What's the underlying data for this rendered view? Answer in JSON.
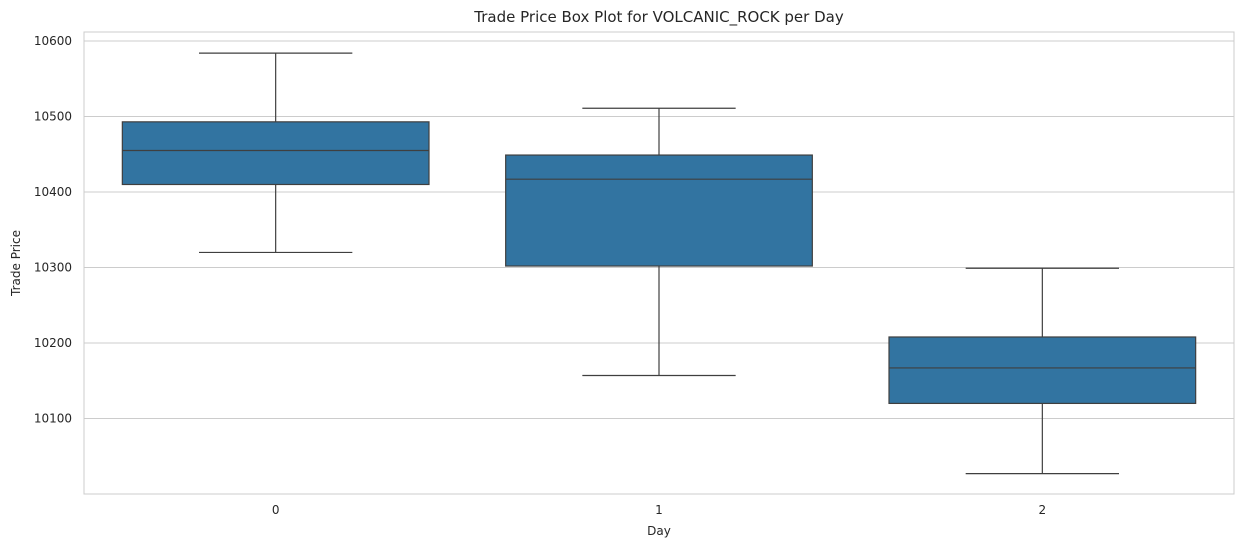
{
  "chart_data": {
    "type": "box",
    "title": "Trade Price Box Plot for VOLCANIC_ROCK per Day",
    "xlabel": "Day",
    "ylabel": "Trade Price",
    "categories": [
      "0",
      "1",
      "2"
    ],
    "y_ticks": [
      10100,
      10200,
      10300,
      10400,
      10500,
      10600
    ],
    "ylim": [
      10000,
      10612
    ],
    "grid": "horizontal",
    "color": "#3274a1",
    "series": [
      {
        "category": "0",
        "whisker_low": 10320,
        "q1": 10410,
        "median": 10455,
        "q3": 10493,
        "whisker_high": 10584
      },
      {
        "category": "1",
        "whisker_low": 10157,
        "q1": 10302,
        "median": 10417,
        "q3": 10449,
        "whisker_high": 10511
      },
      {
        "category": "2",
        "whisker_low": 10027,
        "q1": 10120,
        "median": 10167,
        "q3": 10208,
        "whisker_high": 10299
      }
    ]
  }
}
